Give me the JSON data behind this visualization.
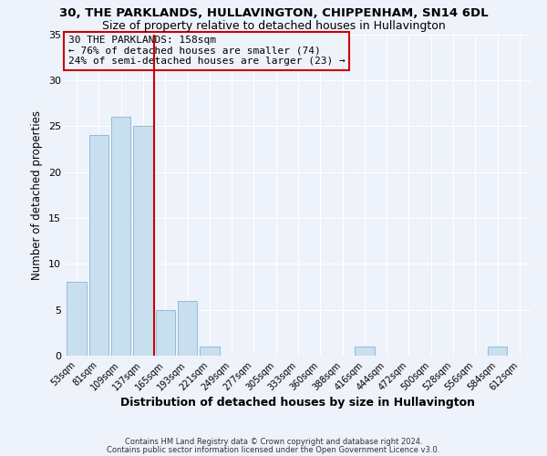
{
  "title": "30, THE PARKLANDS, HULLAVINGTON, CHIPPENHAM, SN14 6DL",
  "subtitle": "Size of property relative to detached houses in Hullavington",
  "xlabel": "Distribution of detached houses by size in Hullavington",
  "ylabel": "Number of detached properties",
  "footnote1": "Contains HM Land Registry data © Crown copyright and database right 2024.",
  "footnote2": "Contains public sector information licensed under the Open Government Licence v3.0.",
  "bar_labels": [
    "53sqm",
    "81sqm",
    "109sqm",
    "137sqm",
    "165sqm",
    "193sqm",
    "221sqm",
    "249sqm",
    "277sqm",
    "305sqm",
    "333sqm",
    "360sqm",
    "388sqm",
    "416sqm",
    "444sqm",
    "472sqm",
    "500sqm",
    "528sqm",
    "556sqm",
    "584sqm",
    "612sqm"
  ],
  "bar_values": [
    8,
    24,
    26,
    25,
    5,
    6,
    1,
    0,
    0,
    0,
    0,
    0,
    0,
    1,
    0,
    0,
    0,
    0,
    0,
    1,
    0
  ],
  "bar_color": "#c8dff0",
  "bar_edgecolor": "#93bcd6",
  "reference_line_color": "#cc0000",
  "annotation_title": "30 THE PARKLANDS: 158sqm",
  "annotation_line1": "← 76% of detached houses are smaller (74)",
  "annotation_line2": "24% of semi-detached houses are larger (23) →",
  "annotation_box_color": "#cc0000",
  "ylim": [
    0,
    35
  ],
  "yticks": [
    0,
    5,
    10,
    15,
    20,
    25,
    30,
    35
  ],
  "background_color": "#eef2fa",
  "grid_color": "#ffffff",
  "title_fontsize": 9.5,
  "subtitle_fontsize": 9
}
